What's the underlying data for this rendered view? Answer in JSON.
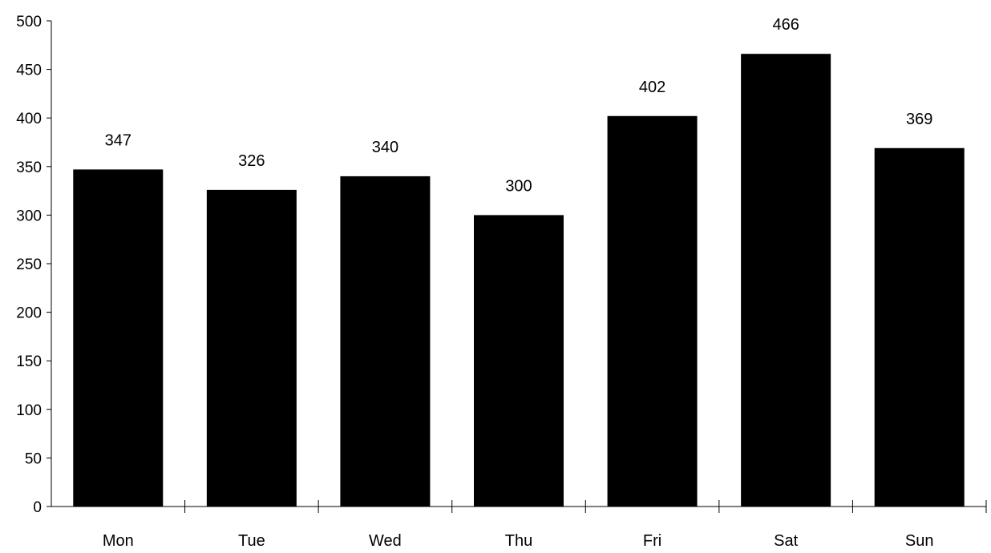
{
  "chart_data": {
    "type": "bar",
    "categories": [
      "Mon",
      "Tue",
      "Wed",
      "Thu",
      "Fri",
      "Sat",
      "Sun"
    ],
    "values": [
      347,
      326,
      340,
      300,
      402,
      466,
      369
    ],
    "data_labels": [
      "347",
      "326",
      "340",
      "300",
      "402",
      "466",
      "369"
    ],
    "title": "",
    "xlabel": "",
    "ylabel": "",
    "ylim": [
      0,
      500
    ],
    "yticks": [
      0,
      50,
      100,
      150,
      200,
      250,
      300,
      350,
      400,
      450,
      500
    ],
    "grid": false,
    "legend": "none",
    "bar_color": "#000000"
  }
}
